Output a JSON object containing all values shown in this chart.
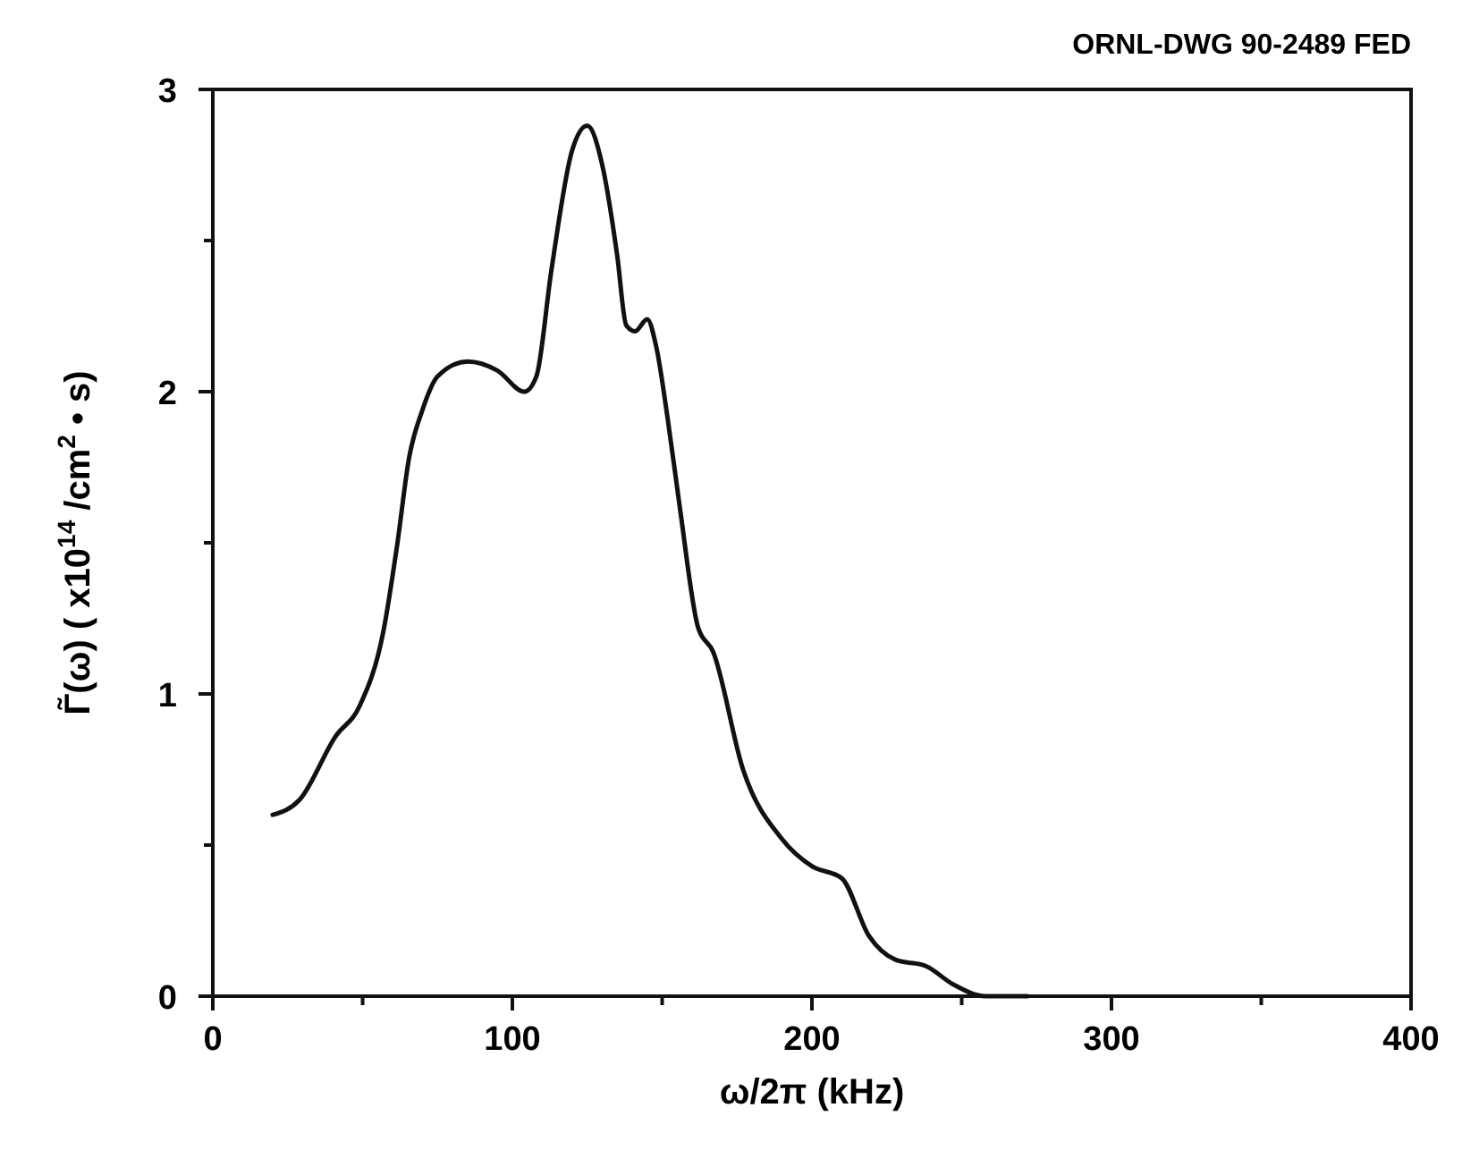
{
  "chart_data": {
    "type": "line",
    "xlabel": "ω/2π  (kHz)",
    "ylabel": "Γ̃(ω) ( x10$^{14}$ /cm$^{2}$ • s)",
    "annotations": [
      "ORNL-DWG 90-2489  FED"
    ],
    "xlim": [
      0,
      400
    ],
    "ylim": [
      0,
      3
    ],
    "xticks": [
      0,
      {
        "value": 50,
        "label": null
      },
      100,
      {
        "value": 150,
        "label": null
      },
      200,
      {
        "value": 250,
        "label": null
      },
      300,
      {
        "value": 350,
        "label": null
      },
      400
    ],
    "yticks": [
      0,
      {
        "value": 0.5,
        "label": null
      },
      1,
      {
        "value": 1.5,
        "label": null
      },
      2,
      {
        "value": 2.5,
        "label": null
      },
      3
    ],
    "grid": false,
    "marker": "none",
    "line_style": "solid",
    "series": [
      {
        "color": "#111111",
        "x": [
          20,
          29,
          41,
          49,
          57,
          61.5,
          65.5,
          70,
          75,
          85,
          95,
          104,
          108,
          113,
          120,
          125,
          130,
          135,
          138,
          141,
          145,
          148,
          152,
          156,
          162,
          167,
          177,
          190,
          200,
          210,
          219,
          228,
          238,
          247,
          258,
          272
        ],
        "values": [
          0.6,
          0.65,
          0.86,
          0.96,
          1.21,
          1.49,
          1.78,
          1.94,
          2.05,
          2.1,
          2.07,
          2.0,
          2.05,
          2.4,
          2.8,
          2.88,
          2.75,
          2.45,
          2.22,
          2.2,
          2.24,
          2.15,
          1.9,
          1.61,
          1.22,
          1.14,
          0.75,
          0.52,
          0.43,
          0.39,
          0.2,
          0.12,
          0.1,
          0.04,
          0.0,
          0.0
        ]
      }
    ]
  }
}
